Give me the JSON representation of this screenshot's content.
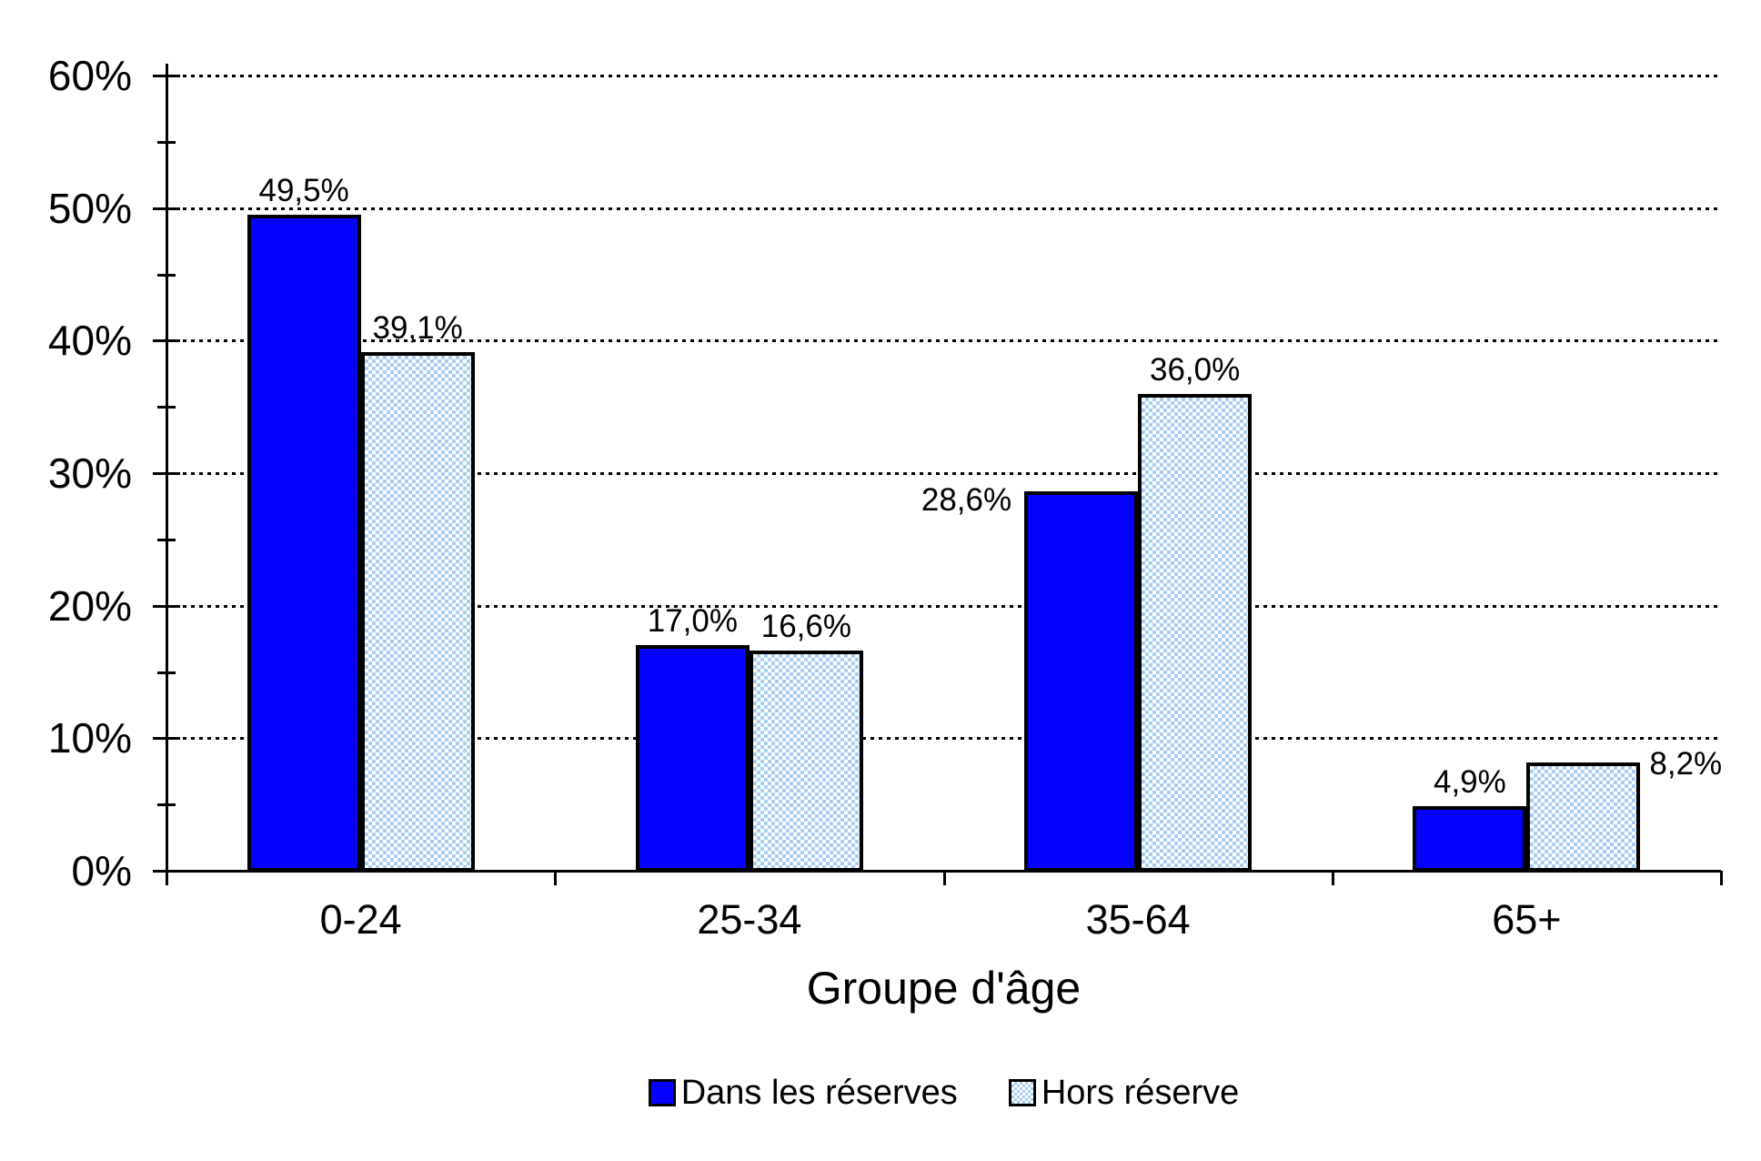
{
  "chart_data": {
    "type": "bar",
    "title": "",
    "xlabel": "Groupe d'âge",
    "ylabel": "",
    "categories": [
      "0-24",
      "25-34",
      "35-64",
      "65+"
    ],
    "series": [
      {
        "name": "Dans les réserves",
        "values": [
          49.5,
          17.0,
          28.6,
          4.9
        ],
        "labels": [
          "49,5%",
          "17,0%",
          "28,6%",
          "4,9%"
        ],
        "label_positions": [
          "above",
          "above",
          "left",
          "above"
        ],
        "fill": "solid",
        "color": "#0402fc"
      },
      {
        "name": "Hors réserve",
        "values": [
          39.1,
          16.6,
          36.0,
          8.2
        ],
        "labels": [
          "39,1%",
          "16,6%",
          "36,0%",
          "8,2%"
        ],
        "label_positions": [
          "above",
          "above",
          "above",
          "right"
        ],
        "fill": "checker",
        "color": "#a9cdf0"
      }
    ],
    "ylim": [
      0,
      60
    ],
    "y_major_step": 10,
    "y_minor_step": 5,
    "y_tick_labels": [
      "0%",
      "10%",
      "20%",
      "30%",
      "40%",
      "50%",
      "60%"
    ],
    "grid": "horizontal-dotted-at-major-ticks",
    "legend_position": "bottom-center",
    "background_color": "#ffffff",
    "text_color": "#000000",
    "bar_border_color": "#000000"
  }
}
